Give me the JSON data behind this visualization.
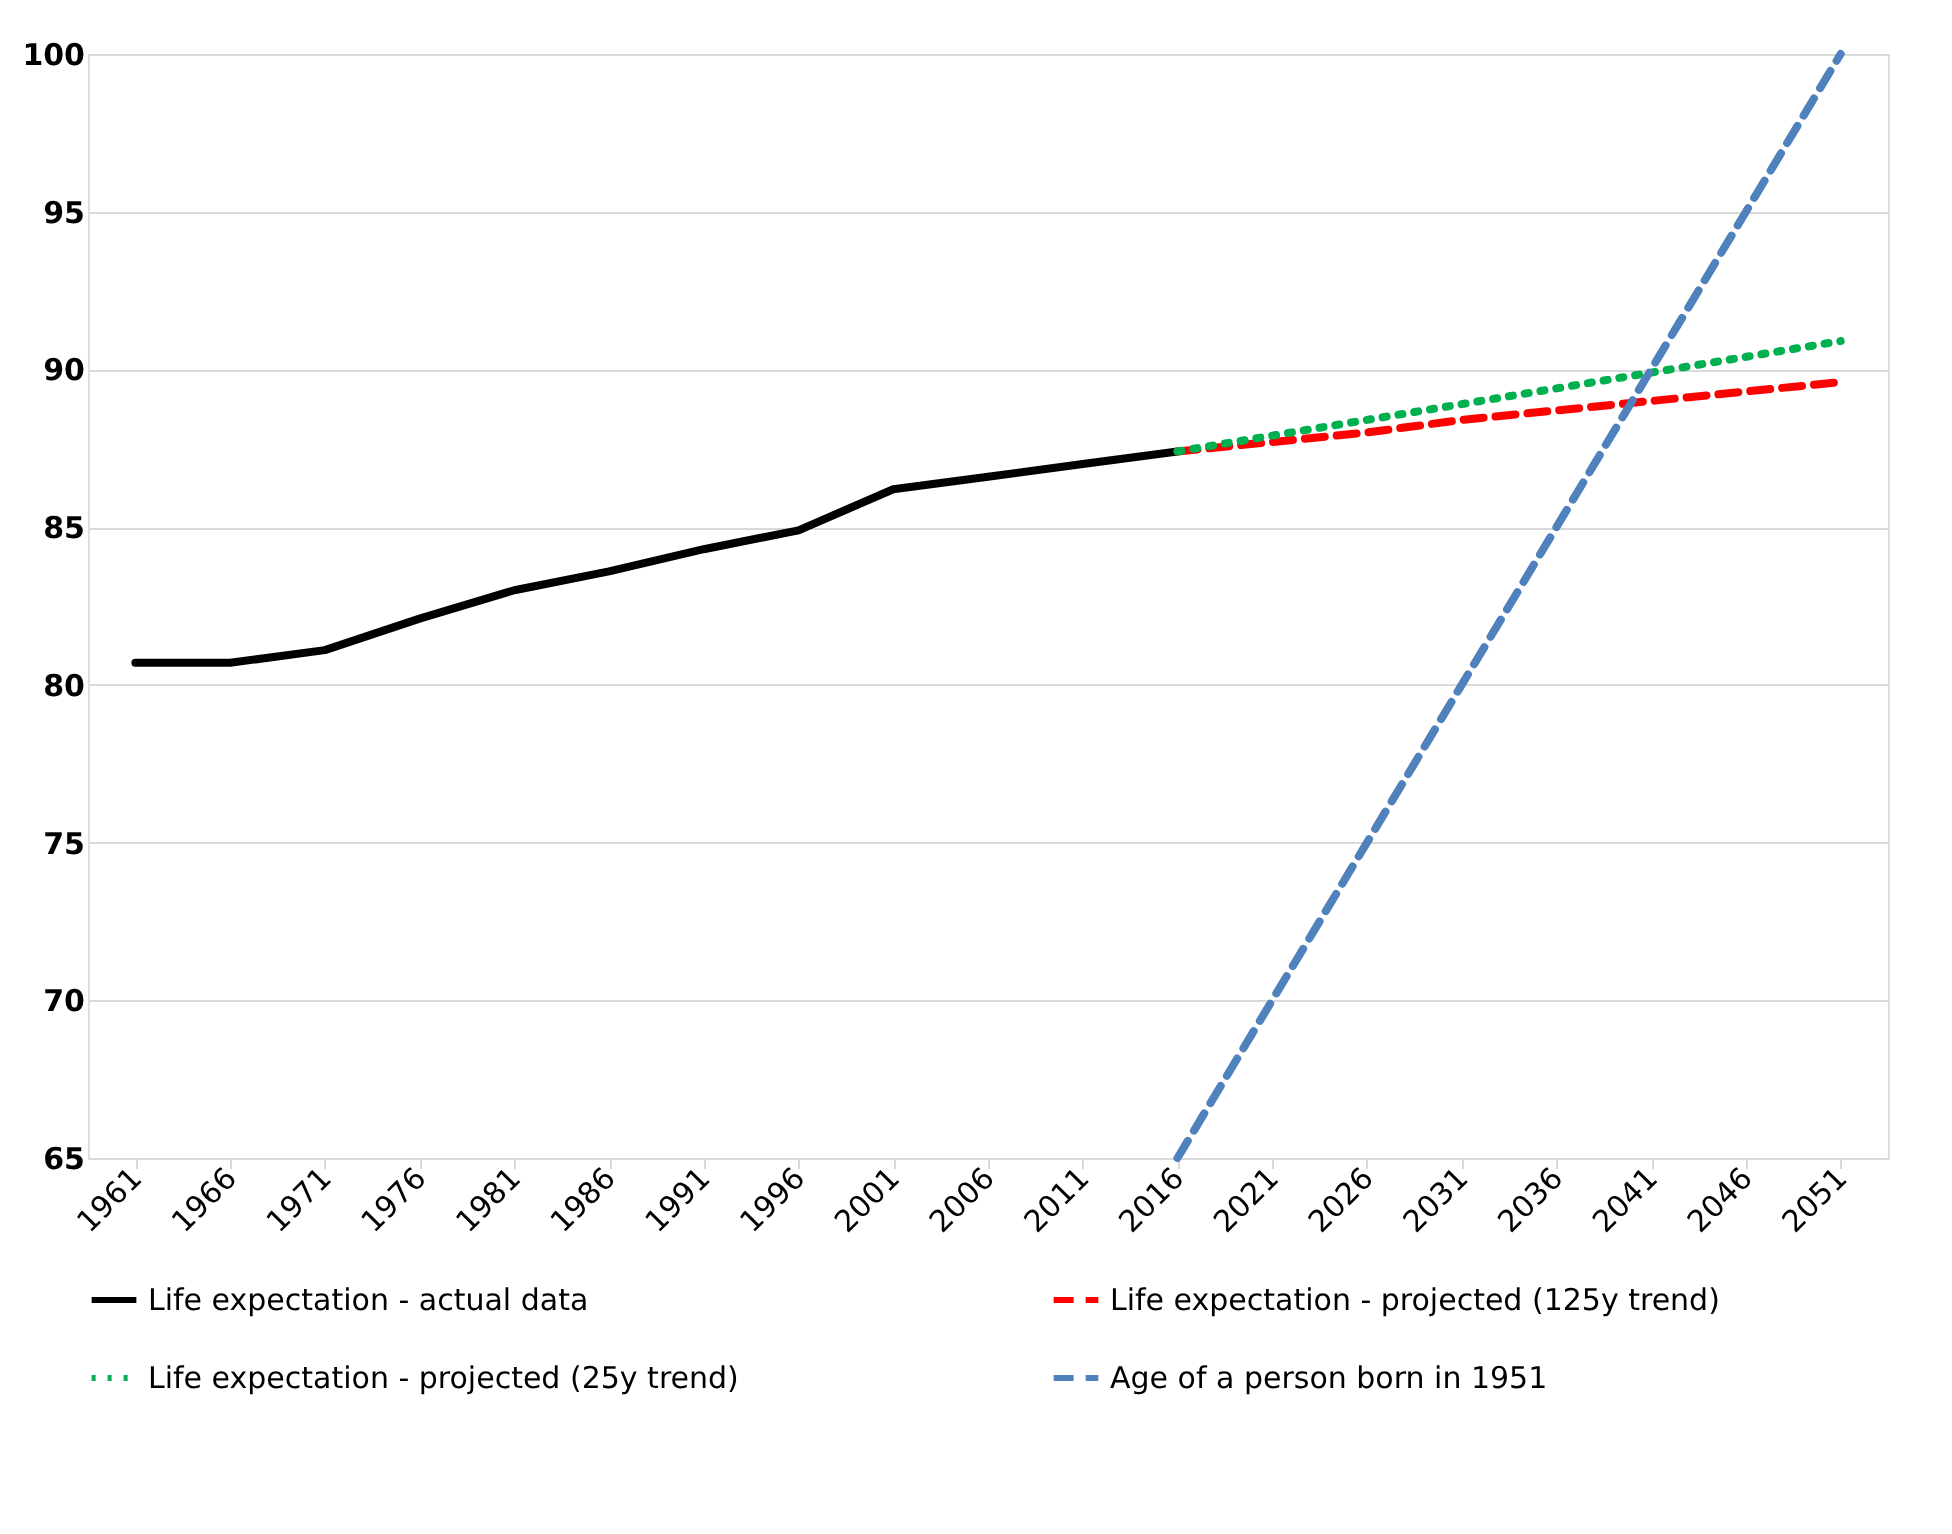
{
  "chart_data": {
    "type": "line",
    "categories": [
      "1961",
      "1966",
      "1971",
      "1976",
      "1981",
      "1986",
      "1991",
      "1996",
      "2001",
      "2006",
      "2011",
      "2016",
      "2021",
      "2026",
      "2031",
      "2036",
      "2041",
      "2046",
      "2051"
    ],
    "series": [
      {
        "name": "Life expectation - actual data",
        "color": "#000000",
        "line_style": "solid",
        "values": [
          80.7,
          80.7,
          81.1,
          82.1,
          83.0,
          83.6,
          84.3,
          84.9,
          86.2,
          86.6,
          87.0,
          87.4,
          null,
          null,
          null,
          null,
          null,
          null,
          null
        ]
      },
      {
        "name": "Life expectation - projected (125y trend)",
        "color": "#ff0000",
        "line_style": "dashed",
        "values": [
          null,
          null,
          null,
          null,
          null,
          null,
          null,
          null,
          null,
          null,
          null,
          87.4,
          87.7,
          88.0,
          88.4,
          88.7,
          89.0,
          89.3,
          89.6
        ]
      },
      {
        "name": "Life expectation - projected (25y trend)",
        "color": "#00b050",
        "line_style": "dotted",
        "values": [
          null,
          null,
          null,
          null,
          null,
          null,
          null,
          null,
          null,
          null,
          null,
          87.4,
          87.9,
          88.4,
          88.9,
          89.4,
          89.9,
          90.4,
          90.9
        ]
      },
      {
        "name": "Age of a person born in 1951",
        "color": "#4f81bd",
        "line_style": "dashed",
        "values": [
          null,
          null,
          null,
          null,
          null,
          null,
          null,
          null,
          null,
          null,
          null,
          65,
          70,
          75,
          80,
          85,
          90,
          95,
          100
        ]
      }
    ],
    "ylim": [
      65,
      100
    ],
    "yticks": [
      65,
      70,
      75,
      80,
      85,
      90,
      95,
      100
    ],
    "grid": "y",
    "legend": "bottom",
    "marker": "none"
  }
}
